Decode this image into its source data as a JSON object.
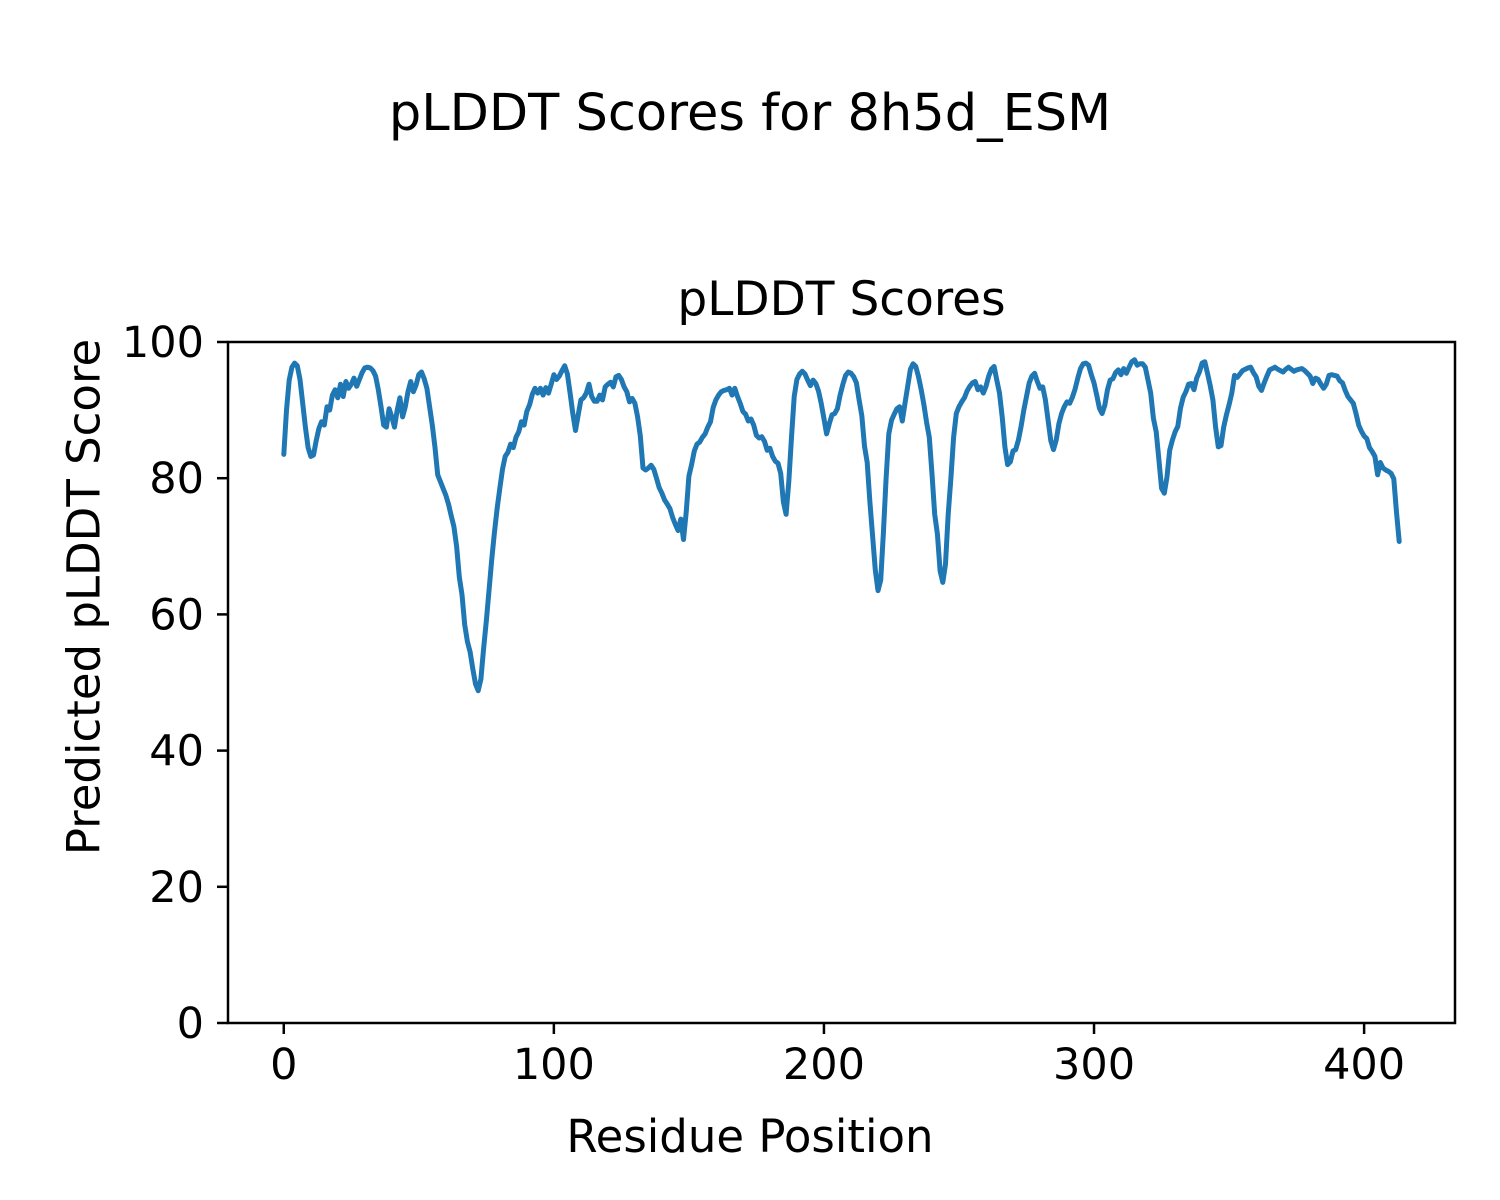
{
  "figure": {
    "suptitle": "pLDDT Scores for 8h5d_ESM",
    "background_color": "#ffffff",
    "text_color": "#000000"
  },
  "chart_data": {
    "type": "line",
    "title": "pLDDT Scores",
    "xlabel": "Residue Position",
    "ylabel": "Predicted pLDDT Score",
    "xlim": [
      -20.65,
      433.65
    ],
    "ylim": [
      0,
      100
    ],
    "xticks": [
      0,
      100,
      200,
      300,
      400
    ],
    "yticks": [
      0,
      20,
      40,
      60,
      80,
      100
    ],
    "grid": false,
    "legend": null,
    "line_color": "#1f77b4",
    "line_width": 5,
    "spine_color": "#000000",
    "series": [
      {
        "name": "pLDDT",
        "x_start": 0,
        "x_step": 1,
        "values": [
          83.5,
          90.0,
          94.4,
          96.3,
          96.9,
          96.5,
          94.5,
          91.0,
          87.5,
          84.5,
          83.2,
          83.4,
          85.5,
          87.3,
          88.3,
          87.8,
          90.5,
          90.0,
          92.2,
          93.0,
          91.8,
          93.8,
          92.0,
          94.2,
          93.2,
          93.8,
          94.7,
          93.5,
          94.5,
          95.5,
          96.2,
          96.3,
          96.2,
          95.8,
          95.0,
          93.0,
          90.5,
          87.8,
          87.5,
          90.2,
          89.0,
          87.5,
          90.0,
          91.8,
          89.0,
          90.5,
          92.7,
          94.2,
          92.7,
          93.7,
          95.2,
          95.6,
          94.6,
          93.2,
          90.5,
          87.8,
          84.5,
          80.5,
          79.5,
          78.5,
          77.5,
          76.2,
          74.5,
          72.9,
          70.0,
          65.5,
          62.9,
          58.5,
          56.0,
          54.5,
          52.0,
          49.8,
          48.8,
          50.5,
          55.0,
          59.0,
          63.5,
          68.0,
          72.0,
          75.5,
          78.5,
          81.3,
          83.2,
          83.8,
          85.0,
          84.5,
          86.0,
          86.8,
          88.3,
          87.8,
          89.8,
          90.8,
          92.3,
          93.2,
          92.5,
          93.2,
          92.2,
          93.3,
          92.5,
          93.8,
          95.2,
          94.5,
          95.0,
          95.8,
          96.5,
          95.3,
          92.5,
          89.5,
          87.0,
          89.3,
          91.5,
          91.8,
          92.5,
          93.8,
          92.0,
          91.3,
          91.3,
          92.2,
          91.5,
          93.4,
          93.8,
          94.1,
          93.4,
          94.9,
          95.1,
          94.5,
          93.4,
          92.7,
          91.2,
          91.7,
          91.0,
          89.0,
          86.2,
          81.5,
          81.2,
          81.5,
          81.9,
          81.3,
          80.0,
          78.6,
          77.8,
          76.8,
          76.2,
          75.5,
          74.2,
          73.2,
          72.3,
          74.0,
          71.0,
          75.0,
          80.3,
          82.0,
          84.0,
          85.0,
          85.3,
          86.0,
          86.5,
          87.5,
          88.3,
          90.4,
          91.5,
          92.2,
          92.7,
          92.9,
          93.0,
          93.2,
          92.2,
          93.2,
          92.0,
          91.0,
          89.8,
          89.4,
          88.4,
          88.7,
          87.8,
          86.3,
          85.9,
          86.1,
          85.4,
          84.1,
          84.4,
          83.2,
          82.5,
          82.2,
          80.7,
          76.5,
          74.7,
          79.5,
          86.0,
          92.0,
          94.5,
          95.3,
          95.7,
          95.3,
          94.4,
          93.6,
          94.4,
          93.9,
          92.8,
          91.0,
          88.8,
          86.5,
          88.0,
          89.3,
          89.5,
          90.2,
          92.2,
          93.8,
          95.1,
          95.6,
          95.4,
          94.9,
          94.0,
          91.5,
          89.2,
          84.7,
          82.3,
          76.5,
          71.5,
          66.5,
          63.5,
          65.0,
          72.0,
          80.0,
          86.5,
          88.5,
          89.4,
          90.2,
          90.5,
          88.4,
          91.0,
          93.5,
          96.0,
          96.8,
          96.4,
          94.9,
          93.0,
          90.8,
          88.2,
          86.0,
          80.6,
          74.7,
          71.8,
          66.4,
          64.7,
          67.4,
          74.7,
          80.0,
          86.0,
          89.5,
          90.5,
          91.2,
          91.8,
          92.8,
          93.5,
          94.0,
          94.2,
          93.0,
          93.4,
          92.5,
          93.5,
          95.0,
          96.0,
          96.4,
          94.4,
          92.5,
          89.0,
          84.6,
          82.0,
          82.4,
          84.0,
          84.2,
          85.6,
          87.6,
          90.0,
          92.0,
          94.0,
          95.0,
          95.4,
          94.2,
          93.2,
          93.4,
          91.5,
          88.5,
          85.5,
          84.2,
          85.6,
          88.0,
          89.5,
          90.5,
          91.2,
          91.0,
          91.9,
          93.1,
          94.7,
          96.1,
          96.8,
          96.9,
          96.6,
          95.2,
          94.0,
          92.2,
          90.3,
          89.5,
          90.7,
          93.0,
          94.4,
          94.6,
          95.5,
          95.9,
          95.2,
          96.1,
          95.4,
          96.3,
          97.1,
          97.4,
          96.6,
          96.8,
          96.8,
          96.3,
          94.4,
          92.5,
          88.8,
          86.8,
          82.7,
          78.5,
          77.8,
          80.2,
          84.1,
          85.6,
          86.8,
          87.6,
          90.3,
          91.9,
          92.7,
          93.8,
          93.9,
          93.0,
          94.7,
          95.6,
          96.9,
          97.1,
          95.4,
          93.6,
          91.5,
          87.5,
          84.6,
          84.8,
          87.5,
          89.3,
          90.8,
          92.5,
          95.1,
          94.8,
          95.3,
          95.8,
          96.0,
          96.2,
          96.3,
          95.5,
          94.9,
          93.5,
          92.9,
          94.0,
          95.0,
          95.9,
          96.1,
          96.3,
          96.0,
          95.8,
          95.6,
          96.0,
          96.3,
          96.0,
          95.7,
          95.9,
          96.0,
          96.1,
          95.8,
          95.4,
          95.0,
          93.9,
          94.7,
          94.5,
          93.8,
          93.2,
          93.8,
          95.1,
          95.2,
          95.1,
          95.0,
          94.3,
          94.0,
          92.9,
          92.0,
          91.5,
          91.0,
          89.5,
          87.8,
          86.9,
          86.2,
          85.8,
          84.5,
          83.9,
          83.2,
          80.5,
          82.3,
          81.5,
          81.2,
          81.0,
          80.7,
          79.9,
          75.0,
          70.7
        ]
      }
    ]
  }
}
